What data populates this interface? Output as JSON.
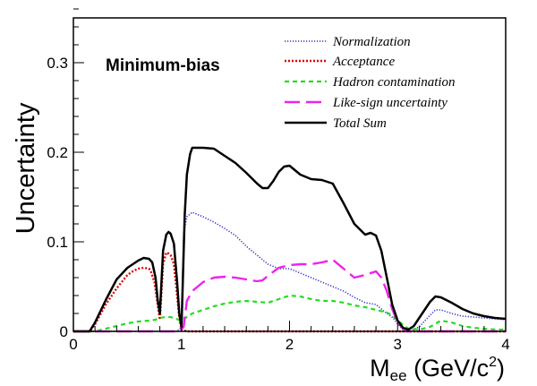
{
  "chart_data": {
    "type": "line",
    "annotation": "Minimum-bias",
    "ylabel": "Uncertainty",
    "xlabel_main": "M",
    "xlabel_sub": "ee",
    "xlabel_unit_pre": " (GeV/c",
    "xlabel_unit_sup": "2",
    "xlabel_unit_post": ")",
    "xlim": [
      0,
      4
    ],
    "ylim": [
      0,
      0.35
    ],
    "x_ticks": [
      0,
      1,
      2,
      3,
      4
    ],
    "y_ticks": [
      0,
      0.1,
      0.2,
      0.3
    ],
    "x_tick_labels": [
      "0",
      "1",
      "2",
      "3",
      "4"
    ],
    "y_tick_labels": [
      "0",
      "0.1",
      "0.2",
      "0.3"
    ],
    "grid": false,
    "legend_position": "top-right",
    "series": [
      {
        "name": "Normalization",
        "color": "#3333cc",
        "style": "dotted",
        "x": [
          0,
          0.96,
          1.0,
          1.02,
          1.05,
          1.1,
          1.2,
          1.3,
          1.4,
          1.5,
          1.6,
          1.7,
          1.8,
          1.9,
          2.0,
          2.1,
          2.2,
          2.3,
          2.4,
          2.5,
          2.6,
          2.7,
          2.8,
          2.9,
          2.96,
          3.0,
          3.05,
          3.1,
          3.2,
          3.3,
          3.35,
          3.4,
          3.5,
          3.6,
          3.7,
          3.8,
          3.9,
          4.0
        ],
        "y": [
          0,
          0,
          0.005,
          0.11,
          0.128,
          0.133,
          0.128,
          0.122,
          0.115,
          0.107,
          0.095,
          0.085,
          0.075,
          0.07,
          0.07,
          0.065,
          0.06,
          0.055,
          0.05,
          0.045,
          0.038,
          0.032,
          0.03,
          0.02,
          0.015,
          0.008,
          0.002,
          0.0,
          0.005,
          0.018,
          0.024,
          0.024,
          0.02,
          0.017,
          0.016,
          0.015,
          0.014,
          0.013
        ]
      },
      {
        "name": "Acceptance",
        "color": "#dd0000",
        "style": "dotted-dense",
        "x": [
          0,
          0.15,
          0.2,
          0.3,
          0.4,
          0.5,
          0.55,
          0.6,
          0.65,
          0.7,
          0.72,
          0.75,
          0.78,
          0.8,
          0.83,
          0.86,
          0.88,
          0.9,
          0.93,
          0.96,
          0.98,
          1.0,
          1.05,
          1.5,
          2.0,
          2.5,
          3.0,
          3.5,
          4.0
        ],
        "y": [
          0,
          0,
          0.008,
          0.03,
          0.048,
          0.063,
          0.067,
          0.07,
          0.071,
          0.07,
          0.066,
          0.055,
          0.03,
          0.013,
          0.075,
          0.088,
          0.087,
          0.085,
          0.075,
          0.04,
          0.015,
          0.002,
          0.0,
          0.0,
          0.0,
          0.0,
          0.0,
          0.0,
          0.0
        ]
      },
      {
        "name": "Hadron contamination",
        "color": "#22dd22",
        "style": "dashed",
        "x": [
          0,
          0.2,
          0.3,
          0.4,
          0.5,
          0.6,
          0.7,
          0.76,
          0.8,
          0.85,
          0.9,
          0.95,
          1.0,
          1.1,
          1.2,
          1.3,
          1.4,
          1.5,
          1.6,
          1.7,
          1.8,
          1.9,
          2.0,
          2.1,
          2.2,
          2.3,
          2.4,
          2.5,
          2.6,
          2.7,
          2.8,
          2.9,
          2.95,
          3.0,
          3.1,
          3.2,
          3.3,
          3.4,
          3.5,
          3.6,
          3.7,
          3.8,
          3.9,
          4.0
        ],
        "y": [
          0,
          0.0,
          0.003,
          0.006,
          0.009,
          0.011,
          0.012,
          0.013,
          0.015,
          0.016,
          0.016,
          0.014,
          0.012,
          0.02,
          0.024,
          0.028,
          0.031,
          0.033,
          0.034,
          0.033,
          0.032,
          0.036,
          0.04,
          0.039,
          0.036,
          0.034,
          0.034,
          0.032,
          0.029,
          0.027,
          0.024,
          0.021,
          0.018,
          0.012,
          0.003,
          0.002,
          0.005,
          0.012,
          0.01,
          0.006,
          0.004,
          0.003,
          0.002,
          0.002
        ]
      },
      {
        "name": "Like-sign uncertainty",
        "color": "#ee22ee",
        "style": "longdash",
        "x": [
          0,
          0.98,
          1.02,
          1.05,
          1.1,
          1.2,
          1.3,
          1.4,
          1.5,
          1.6,
          1.7,
          1.75,
          1.8,
          1.9,
          2.0,
          2.1,
          2.2,
          2.3,
          2.4,
          2.5,
          2.6,
          2.7,
          2.8,
          2.85,
          2.9,
          2.95,
          3.0,
          3.05,
          3.1,
          3.5,
          4.0
        ],
        "y": [
          0,
          0,
          0.005,
          0.034,
          0.045,
          0.055,
          0.06,
          0.061,
          0.06,
          0.058,
          0.056,
          0.057,
          0.062,
          0.071,
          0.074,
          0.075,
          0.075,
          0.077,
          0.08,
          0.07,
          0.06,
          0.063,
          0.067,
          0.06,
          0.045,
          0.025,
          0.01,
          0.003,
          0.0,
          0.0,
          0.0
        ]
      },
      {
        "name": "Total Sum",
        "color": "#000000",
        "style": "solid",
        "x": [
          0,
          0.15,
          0.2,
          0.3,
          0.4,
          0.5,
          0.55,
          0.6,
          0.65,
          0.7,
          0.73,
          0.76,
          0.78,
          0.8,
          0.83,
          0.86,
          0.88,
          0.9,
          0.93,
          0.96,
          0.98,
          1.0,
          1.03,
          1.05,
          1.08,
          1.1,
          1.2,
          1.3,
          1.4,
          1.5,
          1.6,
          1.7,
          1.75,
          1.8,
          1.85,
          1.9,
          1.95,
          2.0,
          2.05,
          2.1,
          2.2,
          2.3,
          2.4,
          2.5,
          2.6,
          2.7,
          2.75,
          2.8,
          2.85,
          2.9,
          2.95,
          3.0,
          3.05,
          3.1,
          3.15,
          3.2,
          3.3,
          3.35,
          3.4,
          3.5,
          3.6,
          3.7,
          3.8,
          3.9,
          4.0
        ],
        "y": [
          0,
          0,
          0.01,
          0.035,
          0.058,
          0.071,
          0.075,
          0.079,
          0.082,
          0.081,
          0.077,
          0.06,
          0.035,
          0.02,
          0.09,
          0.108,
          0.111,
          0.109,
          0.098,
          0.055,
          0.02,
          0.005,
          0.13,
          0.175,
          0.198,
          0.205,
          0.205,
          0.204,
          0.196,
          0.188,
          0.177,
          0.165,
          0.16,
          0.16,
          0.168,
          0.178,
          0.184,
          0.185,
          0.18,
          0.175,
          0.17,
          0.169,
          0.165,
          0.143,
          0.12,
          0.108,
          0.11,
          0.107,
          0.09,
          0.06,
          0.03,
          0.012,
          0.004,
          0.002,
          0.006,
          0.015,
          0.033,
          0.039,
          0.038,
          0.032,
          0.025,
          0.02,
          0.017,
          0.015,
          0.014
        ]
      }
    ]
  }
}
